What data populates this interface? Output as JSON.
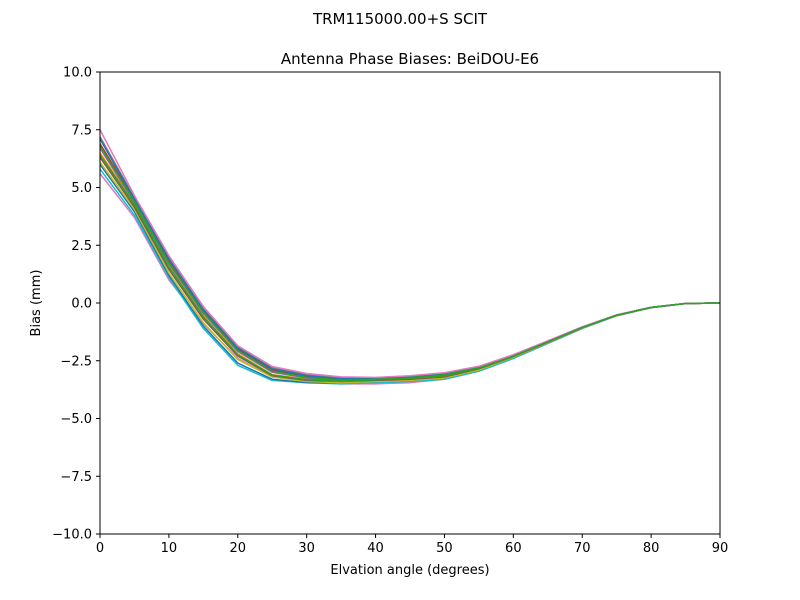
{
  "figure": {
    "suptitle": "TRM115000.00+S  SCIT"
  },
  "chart_data": {
    "type": "line",
    "title": "Antenna Phase Biases: BeiDOU-E6",
    "xlabel": "Elvation angle (degrees)",
    "ylabel": "Bias (mm)",
    "xlim": [
      0,
      90
    ],
    "ylim": [
      -10,
      10
    ],
    "xticks": [
      0,
      10,
      20,
      30,
      40,
      50,
      60,
      70,
      80,
      90
    ],
    "xtick_labels": [
      "0",
      "10",
      "20",
      "30",
      "40",
      "50",
      "60",
      "70",
      "80",
      "90"
    ],
    "yticks": [
      -10,
      -7.5,
      -5,
      -2.5,
      0,
      2.5,
      5,
      7.5,
      10
    ],
    "ytick_labels": [
      "−10.0",
      "−7.5",
      "−5.0",
      "−2.5",
      "0.0",
      "2.5",
      "5.0",
      "7.5",
      "10.0"
    ],
    "grid": false,
    "legend": "none",
    "x": [
      0,
      5,
      10,
      15,
      20,
      25,
      30,
      35,
      40,
      45,
      50,
      55,
      60,
      65,
      70,
      75,
      80,
      85,
      90
    ],
    "series_note_colors": [
      "#1f77b4",
      "#ff7f0e",
      "#2ca02c",
      "#d62728",
      "#9467bd",
      "#8c564b",
      "#e377c2",
      "#7f7f7f",
      "#bcbd22",
      "#17becf"
    ],
    "series": [
      {
        "color": "#e377c2",
        "values": [
          5.6,
          3.7,
          1.0,
          -0.9,
          -2.4,
          -3.2,
          -3.4,
          -3.5,
          -3.5,
          -3.45,
          -3.3,
          -2.95,
          -2.4,
          -1.75,
          -1.1,
          -0.55,
          -0.2,
          -0.02,
          0.0
        ]
      },
      {
        "color": "#17becf",
        "values": [
          5.8,
          3.8,
          1.1,
          -1.1,
          -2.7,
          -3.35,
          -3.45,
          -3.5,
          -3.45,
          -3.4,
          -3.3,
          -2.95,
          -2.4,
          -1.75,
          -1.1,
          -0.55,
          -0.2,
          -0.02,
          0.0
        ]
      },
      {
        "color": "#1f77b4",
        "values": [
          6.0,
          3.95,
          1.2,
          -1.0,
          -2.6,
          -3.3,
          -3.45,
          -3.45,
          -3.4,
          -3.35,
          -3.25,
          -2.9,
          -2.35,
          -1.72,
          -1.08,
          -0.54,
          -0.2,
          -0.02,
          0.0
        ]
      },
      {
        "color": "#bcbd22",
        "values": [
          6.1,
          4.05,
          1.3,
          -0.85,
          -2.45,
          -3.2,
          -3.4,
          -3.45,
          -3.4,
          -3.35,
          -3.25,
          -2.9,
          -2.35,
          -1.72,
          -1.08,
          -0.54,
          -0.2,
          -0.02,
          0.0
        ]
      },
      {
        "color": "#8c564b",
        "values": [
          6.3,
          4.15,
          1.45,
          -0.7,
          -2.3,
          -3.15,
          -3.35,
          -3.4,
          -3.35,
          -3.3,
          -3.2,
          -2.85,
          -2.32,
          -1.7,
          -1.07,
          -0.53,
          -0.2,
          -0.02,
          0.0
        ]
      },
      {
        "color": "#ff7f0e",
        "values": [
          6.5,
          4.3,
          1.6,
          -0.55,
          -2.2,
          -3.1,
          -3.3,
          -3.4,
          -3.3,
          -3.25,
          -3.15,
          -2.82,
          -2.3,
          -1.68,
          -1.06,
          -0.53,
          -0.19,
          -0.02,
          0.0
        ]
      },
      {
        "color": "#9467bd",
        "values": [
          6.7,
          4.35,
          1.7,
          -0.45,
          -2.1,
          -3.0,
          -3.25,
          -3.35,
          -3.3,
          -3.22,
          -3.1,
          -2.8,
          -2.28,
          -1.67,
          -1.05,
          -0.52,
          -0.19,
          -0.02,
          0.0
        ]
      },
      {
        "color": "#d62728",
        "values": [
          6.9,
          4.45,
          1.8,
          -0.35,
          -2.0,
          -2.9,
          -3.2,
          -3.3,
          -3.28,
          -3.2,
          -3.08,
          -2.78,
          -2.27,
          -1.66,
          -1.05,
          -0.52,
          -0.19,
          -0.02,
          0.0
        ]
      },
      {
        "color": "#7f7f7f",
        "values": [
          7.2,
          4.55,
          1.95,
          -0.25,
          -1.9,
          -2.8,
          -3.1,
          -3.25,
          -3.25,
          -3.18,
          -3.05,
          -2.76,
          -2.25,
          -1.65,
          -1.04,
          -0.52,
          -0.19,
          -0.02,
          0.0
        ]
      },
      {
        "color": "#1f77b4",
        "values": [
          7.1,
          4.5,
          1.9,
          -0.3,
          -1.95,
          -2.85,
          -3.15,
          -3.28,
          -3.28,
          -3.2,
          -3.07,
          -2.78,
          -2.27,
          -1.66,
          -1.05,
          -0.52,
          -0.19,
          -0.02,
          0.0
        ]
      },
      {
        "color": "#2ca02c",
        "values": [
          6.8,
          4.4,
          1.75,
          -0.4,
          -2.05,
          -2.95,
          -3.22,
          -3.33,
          -3.3,
          -3.23,
          -3.1,
          -2.8,
          -2.28,
          -1.67,
          -1.05,
          -0.52,
          -0.19,
          -0.02,
          0.0
        ]
      },
      {
        "color": "#e377c2",
        "values": [
          7.5,
          4.65,
          2.05,
          -0.15,
          -1.85,
          -2.75,
          -3.05,
          -3.2,
          -3.22,
          -3.15,
          -3.02,
          -2.74,
          -2.24,
          -1.64,
          -1.03,
          -0.51,
          -0.19,
          -0.02,
          0.0
        ]
      },
      {
        "color": "#2ca02c",
        "values": [
          6.4,
          4.25,
          1.55,
          -0.6,
          -2.25,
          -3.12,
          -3.32,
          -3.38,
          -3.32,
          -3.26,
          -3.15,
          -2.83,
          -2.3,
          -1.68,
          -1.06,
          -0.53,
          -0.19,
          -0.02,
          0.0
        ]
      }
    ]
  }
}
